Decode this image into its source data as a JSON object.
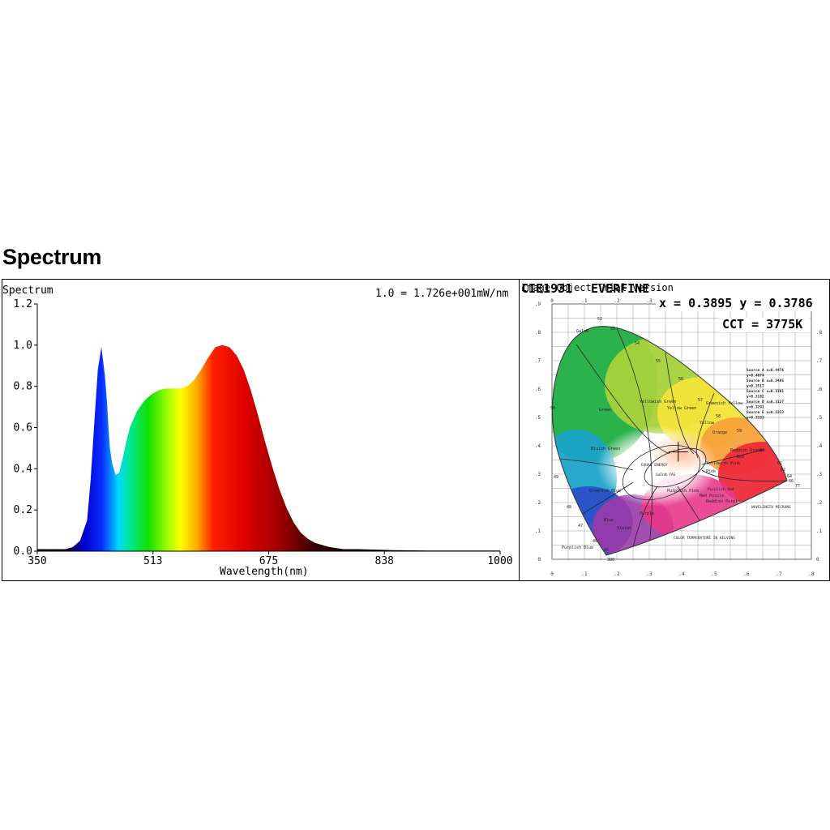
{
  "page": {
    "heading": "Spectrum"
  },
  "colors": {
    "blue_peak": "#1010d0",
    "green": "#22cc22",
    "red": "#dd0000",
    "frame": "#000000"
  },
  "watermark": {
    "icon": "leaf-logo-icon"
  },
  "chart_data": [
    {
      "type": "area",
      "title": "Spectrum",
      "annotation": "1.0 = 1.726e+001mW/nm",
      "xlabel": "Wavelength(nm)",
      "ylabel": "",
      "xlim": [
        350,
        1000
      ],
      "ylim": [
        0,
        1.2
      ],
      "xticks": [
        "350",
        "513",
        "675",
        "838",
        "1000"
      ],
      "yticks": [
        "0.0",
        "0.2",
        "0.4",
        "0.6",
        "0.8",
        "1.0",
        "1.2"
      ],
      "grid": false,
      "fill": "visible-spectrum-gradient",
      "x": [
        350,
        380,
        390,
        400,
        410,
        420,
        425,
        430,
        435,
        440,
        445,
        448,
        450,
        452,
        455,
        460,
        465,
        470,
        475,
        480,
        490,
        500,
        510,
        520,
        530,
        540,
        550,
        560,
        570,
        580,
        590,
        600,
        610,
        620,
        630,
        640,
        650,
        660,
        670,
        680,
        690,
        700,
        710,
        720,
        730,
        740,
        750,
        760,
        780,
        800,
        850,
        900,
        950,
        1000
      ],
      "y": [
        0.01,
        0.01,
        0.01,
        0.02,
        0.05,
        0.15,
        0.35,
        0.62,
        0.88,
        0.99,
        0.85,
        0.72,
        0.6,
        0.5,
        0.43,
        0.37,
        0.38,
        0.45,
        0.53,
        0.6,
        0.68,
        0.73,
        0.76,
        0.78,
        0.79,
        0.79,
        0.79,
        0.8,
        0.83,
        0.88,
        0.94,
        0.99,
        1.0,
        0.99,
        0.95,
        0.88,
        0.78,
        0.66,
        0.53,
        0.41,
        0.3,
        0.21,
        0.14,
        0.09,
        0.06,
        0.04,
        0.03,
        0.02,
        0.01,
        0.01,
        0.005,
        0.003,
        0.003,
        0.003
      ]
    },
    {
      "type": "scatter",
      "title": "CIE1931",
      "header_texts": [
        "Image Object Trial Version",
        "CIE1931",
        "EVERFINE"
      ],
      "readout": "x = 0.3895 y = 0.3786",
      "cct": "CCT = 3775K",
      "point": {
        "x": 0.3895,
        "y": 0.3786
      },
      "xlim": [
        0,
        0.8
      ],
      "ylim": [
        0,
        0.9
      ],
      "xticks": [
        "0",
        ".1",
        ".2",
        ".3",
        ".4",
        ".5",
        ".6",
        ".7",
        ".8"
      ],
      "yticks": [
        "0",
        ".1",
        ".2",
        ".3",
        ".4",
        ".5",
        ".6",
        ".7",
        ".8",
        ".9"
      ],
      "grid": true,
      "region_labels": [
        "GaInN",
        "Green",
        "Yellowish Green",
        "Yellow Green",
        "Greenish Yellow",
        "Yellow",
        "Orange",
        "Reddish Orange",
        "Red",
        "Pink",
        "Yellowish Pink",
        "Purplish Pink",
        "Red Purple",
        "Reddish Purple",
        "Purple",
        "Purplish Blue",
        "Blue",
        "Greenish Blue",
        "Bluish Green",
        "Violet"
      ],
      "boundary_ticks": [
        "52",
        "53",
        "54",
        "55",
        "56",
        "57",
        "58",
        "59",
        "60",
        "61",
        "62",
        "64",
        "66",
        "77",
        "50",
        "49",
        "48",
        "47",
        "46",
        "45",
        "380"
      ],
      "legend_lines": [
        "Source A x=0.4476",
        "y=0.4074",
        "Source B x=0.3485",
        "y=0.3517",
        "Source C x=0.3101",
        "y=0.3162",
        "Source D x=0.3127",
        "y=0.3291",
        "Source E x=0.3333",
        "y=0.3333"
      ],
      "notes": [
        "WAVELENGTH MICRONS",
        "COLOR TEMPERATURE IN KELVINS",
        "EQUAL ENERGY",
        "GaInN-YAG",
        "Purplish Red"
      ]
    }
  ]
}
